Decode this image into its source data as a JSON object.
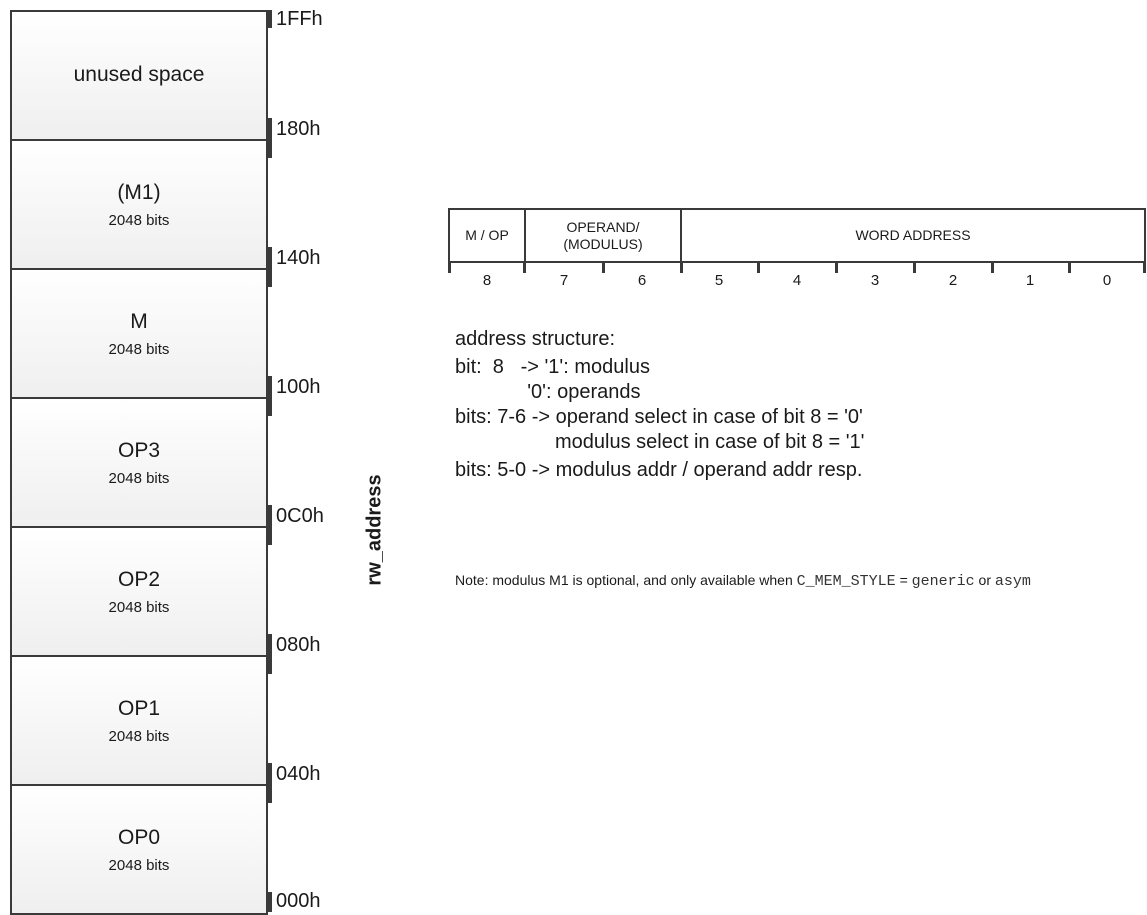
{
  "memory_map": {
    "blocks": [
      {
        "name": "unused space",
        "size": ""
      },
      {
        "name": "(M1)",
        "size": "2048 bits"
      },
      {
        "name": "M",
        "size": "2048 bits"
      },
      {
        "name": "OP3",
        "size": "2048 bits"
      },
      {
        "name": "OP2",
        "size": "2048 bits"
      },
      {
        "name": "OP1",
        "size": "2048 bits"
      },
      {
        "name": "OP0",
        "size": "2048 bits"
      }
    ],
    "addresses": [
      "1FFh",
      "180h",
      "140h",
      "100h",
      "0C0h",
      "080h",
      "040h",
      "000h"
    ],
    "axis_label": "rw_address"
  },
  "register": {
    "fields": [
      {
        "label": "M / OP"
      },
      {
        "label": "OPERAND/\n(MODULUS)"
      },
      {
        "label": "WORD ADDRESS"
      }
    ],
    "bits": [
      "8",
      "7",
      "6",
      "5",
      "4",
      "3",
      "2",
      "1",
      "0"
    ]
  },
  "description": {
    "lines": [
      "address structure:",
      "bit:  8   -> '1': modulus",
      "             '0': operands",
      "bits: 7-6 -> operand select in case of bit 8 = '0'",
      "                  modulus select in case of bit 8 = '1'",
      "bits: 5-0 -> modulus addr / operand addr resp."
    ]
  },
  "note": {
    "prefix": "Note: modulus M1 is optional, and only available when ",
    "code1": "C_MEM_STYLE",
    "eq": " = ",
    "code2": "generic",
    "or": " or ",
    "code3": "asym"
  }
}
